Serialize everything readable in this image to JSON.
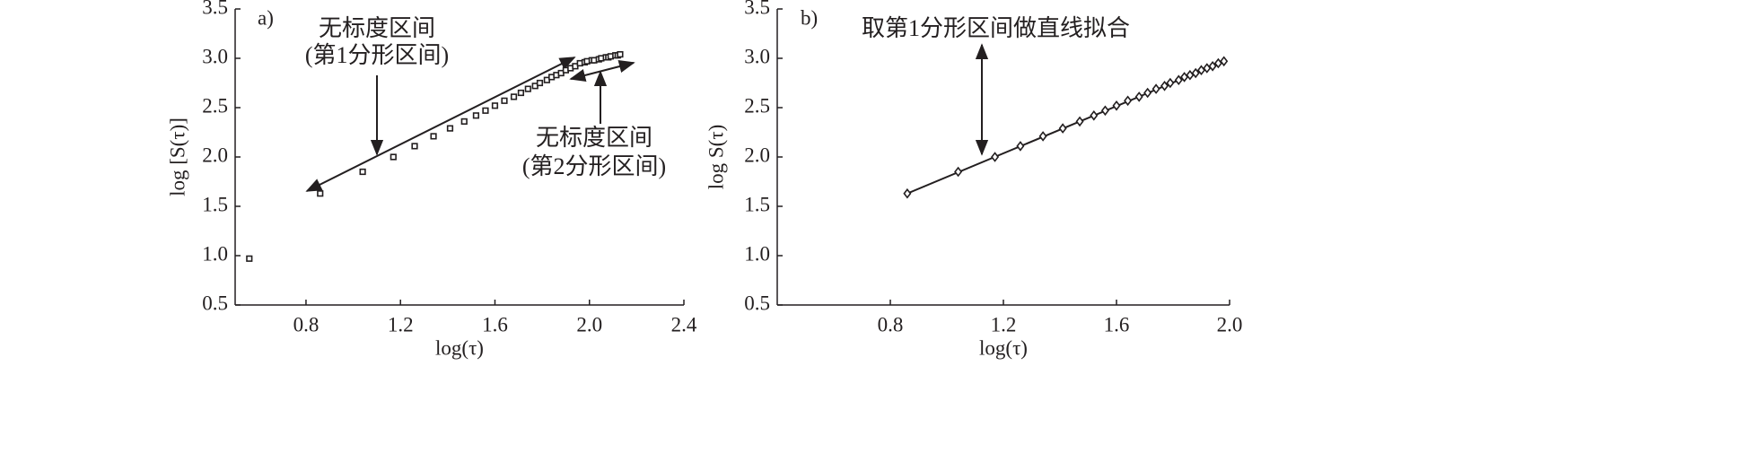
{
  "chart_data": [
    {
      "type": "scatter",
      "panel_label": "a)",
      "xlabel": "log(τ)",
      "ylabel": "log [S(τ)]",
      "xlim": [
        0.5,
        2.4
      ],
      "ylim": [
        0.5,
        3.5
      ],
      "xticks": [
        0.8,
        1.2,
        1.6,
        {
          "value": 2,
          "label": "2.0"
        },
        2.4
      ],
      "yticks": [
        0.5,
        {
          "value": 1,
          "label": "1.0"
        },
        1.5,
        {
          "value": 2,
          "label": "2.0"
        },
        2.5,
        {
          "value": 3,
          "label": "3.0"
        },
        3.5
      ],
      "annotations": [
        "无标度区间",
        "(第1分形区间)",
        "无标度区间",
        "(第2分形区间)"
      ],
      "series": [
        {
          "marker": "square",
          "color": "#231f20",
          "x": [
            0.56,
            0.86,
            1.04,
            1.17,
            1.26,
            1.34,
            1.41,
            1.47,
            1.52,
            1.56,
            1.6,
            1.64,
            1.68,
            1.71,
            1.74,
            1.77,
            1.79,
            1.82,
            1.84,
            1.86,
            1.88,
            1.9,
            1.92,
            1.94,
            1.96,
            1.98,
            1.99,
            2.01,
            2.02,
            2.04,
            2.05,
            2.07,
            2.08,
            2.09,
            2.11,
            2.12,
            2.13
          ],
          "values": [
            0.97,
            1.63,
            1.85,
            2.0,
            2.11,
            2.21,
            2.29,
            2.36,
            2.42,
            2.47,
            2.52,
            2.57,
            2.61,
            2.65,
            2.69,
            2.72,
            2.75,
            2.78,
            2.81,
            2.83,
            2.85,
            2.88,
            2.9,
            2.92,
            2.95,
            2.96,
            2.97,
            2.98,
            2.98,
            2.99,
            3.0,
            3.01,
            3.01,
            3.02,
            3.03,
            3.03,
            3.04
          ]
        }
      ]
    },
    {
      "type": "scatter",
      "panel_label": "b)",
      "xlabel": "log(τ)",
      "ylabel": "log S(τ)",
      "xlim": [
        0.4,
        2.0
      ],
      "ylim": [
        0.5,
        3.5
      ],
      "xticks": [
        0.8,
        1.2,
        1.6,
        {
          "value": 2,
          "label": "2.0"
        }
      ],
      "yticks": [
        0.5,
        {
          "value": 1,
          "label": "1.0"
        },
        1.5,
        {
          "value": 2,
          "label": "2.0"
        },
        2.5,
        {
          "value": 3,
          "label": "3.0"
        },
        3.5
      ],
      "annotations": [
        "取第1分形区间做直线拟合"
      ],
      "series": [
        {
          "style": "line",
          "color": "#231f20",
          "x": [
            0.86,
            1.98
          ],
          "values": [
            1.63,
            2.97
          ]
        },
        {
          "marker": "diamond",
          "color": "#231f20",
          "x": [
            0.86,
            1.04,
            1.17,
            1.26,
            1.34,
            1.41,
            1.47,
            1.52,
            1.56,
            1.6,
            1.64,
            1.68,
            1.71,
            1.74,
            1.77,
            1.79,
            1.82,
            1.84,
            1.86,
            1.88,
            1.9,
            1.92,
            1.94,
            1.96,
            1.98
          ],
          "values": [
            1.63,
            1.85,
            2.0,
            2.11,
            2.21,
            2.29,
            2.36,
            2.42,
            2.47,
            2.52,
            2.57,
            2.61,
            2.65,
            2.69,
            2.72,
            2.75,
            2.78,
            2.81,
            2.83,
            2.85,
            2.88,
            2.9,
            2.92,
            2.95,
            2.97
          ]
        }
      ]
    }
  ]
}
